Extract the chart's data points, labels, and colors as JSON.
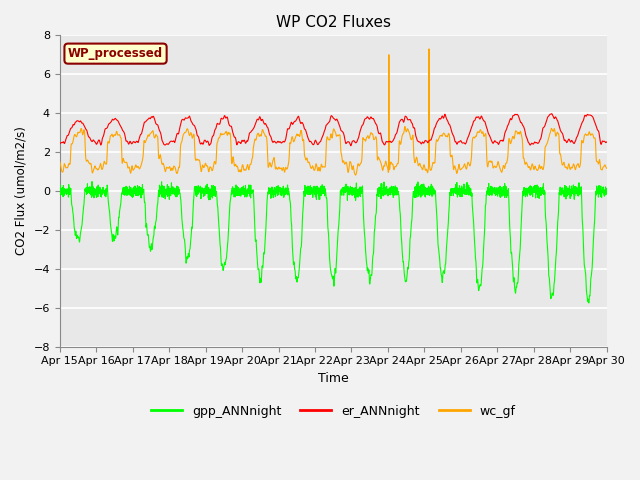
{
  "title": "WP CO2 Fluxes",
  "ylabel": "CO2 Flux (umol/m2/s)",
  "xlabel": "Time",
  "ylim": [
    -8,
    8
  ],
  "yticks": [
    -8,
    -6,
    -4,
    -2,
    0,
    2,
    4,
    6,
    8
  ],
  "xtick_labels": [
    "Apr 15",
    "Apr 16",
    "Apr 17",
    "Apr 18",
    "Apr 19",
    "Apr 20",
    "Apr 21",
    "Apr 22",
    "Apr 23",
    "Apr 24",
    "Apr 25",
    "Apr 26",
    "Apr 27",
    "Apr 28",
    "Apr 29",
    "Apr 30"
  ],
  "legend_labels": [
    "gpp_ANNnight",
    "er_ANNnight",
    "wc_gf"
  ],
  "line_colors": [
    "#00FF00",
    "#FF0000",
    "#FFA500"
  ],
  "annotation_text": "WP_processed",
  "annotation_bg": "#FFFFCC",
  "annotation_border": "#8B0000",
  "background_color": "#E8E8E8",
  "grid_color": "#FFFFFF",
  "days": 15,
  "seed": 42
}
